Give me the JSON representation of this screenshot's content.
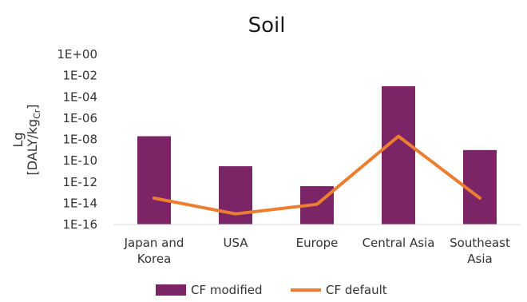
{
  "chart_data": {
    "type": "bar",
    "title": "Soil",
    "ylabel_line1": "Lg",
    "ylabel_line2_prefix": "[DALY/kg",
    "ylabel_line2_sub": "Cr",
    "ylabel_line2_suffix": "]",
    "yscale": "log10",
    "ylim": [
      1e-16,
      1
    ],
    "yticks": [
      "1E-16",
      "1E-14",
      "1E-12",
      "1E-10",
      "1E-08",
      "1E-06",
      "1E-04",
      "1E-02",
      "1E+00"
    ],
    "categories": [
      [
        "Japan and",
        "Korea"
      ],
      [
        "USA"
      ],
      [
        "Europe"
      ],
      [
        "Central Asia"
      ],
      [
        "Southeast",
        "Asia"
      ]
    ],
    "series": [
      {
        "name": "CF modified",
        "kind": "bar",
        "color": "#7b2466",
        "values": [
          2e-08,
          3e-11,
          4e-13,
          0.001,
          1e-09
        ]
      },
      {
        "name": "CF default",
        "kind": "line",
        "color": "#ed7d31",
        "values": [
          3e-14,
          1e-15,
          8e-15,
          2e-08,
          3e-14
        ]
      }
    ],
    "grid": false,
    "legend_position": "bottom"
  }
}
